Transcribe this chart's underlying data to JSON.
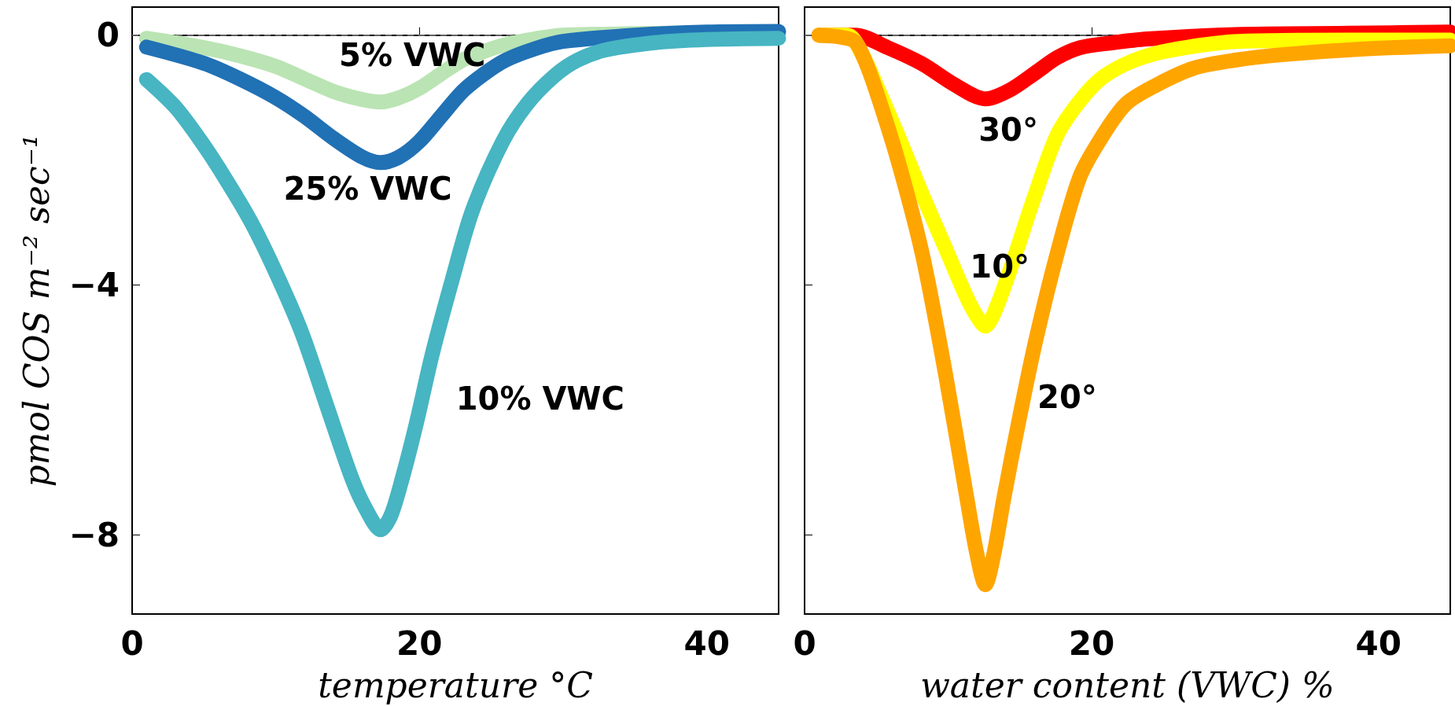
{
  "chart_data": [
    {
      "type": "line",
      "xlabel": "temperature °C",
      "ylabel": "pmol COS m⁻² sec⁻¹",
      "xlim": [
        0,
        45
      ],
      "xticks": [
        0,
        20,
        40
      ],
      "ylim": [
        -9.27,
        0.45
      ],
      "yticks": [
        -8,
        -4,
        0
      ],
      "ref_lines": [
        {
          "axis": "y",
          "value": 0,
          "color": "#808080",
          "line_style": "dashed"
        }
      ],
      "series": [
        {
          "name": "5% VWC",
          "color": "#bae4b3",
          "x": [
            1,
            5,
            7.5,
            10,
            12,
            14,
            16,
            17.3,
            18.6,
            20,
            21.5,
            23,
            24.5,
            26,
            28,
            30,
            45
          ],
          "values": [
            -0.05,
            -0.2,
            -0.33,
            -0.5,
            -0.7,
            -0.9,
            -1.03,
            -1.07,
            -1.0,
            -0.85,
            -0.62,
            -0.4,
            -0.26,
            -0.15,
            -0.06,
            0,
            0.05
          ]
        },
        {
          "name": "25% VWC",
          "color": "#2171b5",
          "x": [
            1,
            5,
            7.5,
            10,
            12,
            14,
            16,
            17.3,
            18.6,
            20,
            21.5,
            23,
            24.5,
            26,
            28,
            30,
            35,
            40,
            45
          ],
          "values": [
            -0.19,
            -0.45,
            -0.7,
            -1.0,
            -1.3,
            -1.65,
            -1.95,
            -2.04,
            -1.95,
            -1.7,
            -1.3,
            -0.9,
            -0.62,
            -0.4,
            -0.22,
            -0.1,
            0,
            0.05,
            0.06
          ]
        },
        {
          "name": "10% VWC",
          "color": "#47b5c2",
          "x": [
            1,
            3,
            4.8,
            6.5,
            8.3,
            10,
            11.8,
            13.5,
            15.3,
            16.3,
            17.3,
            18,
            18.8,
            19.8,
            20.9,
            22.3,
            23.7,
            25.8,
            27.5,
            29.4,
            31,
            32.9,
            36.4,
            40,
            45
          ],
          "values": [
            -0.71,
            -1.15,
            -1.7,
            -2.3,
            -3.0,
            -3.8,
            -4.76,
            -5.9,
            -7.1,
            -7.6,
            -7.92,
            -7.7,
            -7.1,
            -6.2,
            -5.1,
            -3.9,
            -2.8,
            -1.7,
            -1.1,
            -0.65,
            -0.4,
            -0.24,
            -0.12,
            -0.07,
            -0.05
          ]
        }
      ]
    },
    {
      "type": "line",
      "xlabel": "water content (VWC) %",
      "xlim": [
        0,
        45
      ],
      "xticks": [
        0,
        20,
        40
      ],
      "ylim": [
        -9.27,
        0.45
      ],
      "yticks": [
        -8,
        -4,
        0
      ],
      "tick_labels": "x",
      "ref_lines": [
        {
          "axis": "y",
          "value": 0,
          "color": "#808080",
          "line_style": "dashed"
        }
      ],
      "series": [
        {
          "name": "30°",
          "color": "#ff0000",
          "x": [
            1,
            2.5,
            3.5,
            5.8,
            8.2,
            10.5,
            12.6,
            14.3,
            16.1,
            17.6,
            19.2,
            21.5,
            23.9,
            30,
            38,
            45
          ],
          "values": [
            0,
            0,
            0,
            -0.2,
            -0.46,
            -0.8,
            -1.02,
            -0.88,
            -0.6,
            -0.36,
            -0.2,
            -0.12,
            -0.06,
            0.01,
            0.03,
            0.05
          ]
        },
        {
          "name": "10°",
          "color": "#ffff00",
          "x": [
            1,
            3,
            4,
            5,
            6.5,
            8.2,
            9.8,
            11.3,
            12,
            12.6,
            13.3,
            14.5,
            16,
            17.6,
            19.2,
            20.8,
            23,
            25.5,
            30.2,
            38,
            45
          ],
          "values": [
            0,
            0,
            -0.3,
            -0.8,
            -1.6,
            -2.55,
            -3.4,
            -4.2,
            -4.5,
            -4.66,
            -4.4,
            -3.64,
            -2.6,
            -1.6,
            -1.05,
            -0.67,
            -0.4,
            -0.24,
            -0.1,
            -0.08,
            -0.08
          ]
        },
        {
          "name": "20°",
          "color": "#ffa500",
          "x": [
            1,
            2.5,
            3.5,
            4.2,
            5,
            6.5,
            8.2,
            9.8,
            11.3,
            12,
            12.6,
            13.2,
            13.9,
            15,
            16.1,
            17.6,
            19.2,
            20.8,
            22.4,
            24.5,
            27.1,
            30,
            33.4,
            39,
            45
          ],
          "values": [
            0,
            -0.03,
            -0.1,
            -0.4,
            -0.9,
            -2.0,
            -3.5,
            -5.4,
            -7.4,
            -8.3,
            -8.8,
            -8.3,
            -7.4,
            -6.1,
            -4.9,
            -3.5,
            -2.26,
            -1.6,
            -1.1,
            -0.8,
            -0.53,
            -0.4,
            -0.31,
            -0.22,
            -0.17
          ]
        }
      ]
    }
  ]
}
